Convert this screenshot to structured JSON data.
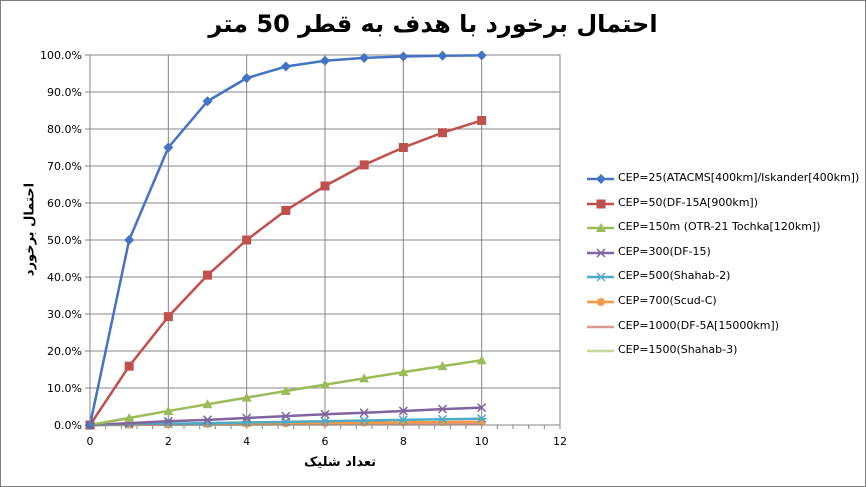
{
  "chart_data": {
    "type": "line",
    "title": "احتمال برخورد با هدف به قطر 50 متر",
    "xlabel": "تعداد شلیک",
    "ylabel": "احتمال برخورد",
    "xlim": [
      0,
      12
    ],
    "ylim": [
      0,
      1.0
    ],
    "x_ticks": [
      "0",
      "2",
      "4",
      "6",
      "8",
      "10",
      "12"
    ],
    "y_ticks": [
      "0.0%",
      "10.0%",
      "20.0%",
      "30.0%",
      "40.0%",
      "50.0%",
      "60.0%",
      "70.0%",
      "80.0%",
      "90.0%",
      "100.0%"
    ],
    "grid": true,
    "legend_position": "right",
    "x": [
      0,
      1,
      2,
      3,
      4,
      5,
      6,
      7,
      8,
      9,
      10
    ],
    "series": [
      {
        "name": "CEP=25(ATACMS[400km]/Iskander[400km])",
        "color": "#4472c4",
        "marker": "diamond",
        "values": [
          0,
          0.5,
          0.75,
          0.875,
          0.9375,
          0.9688,
          0.9844,
          0.9922,
          0.9961,
          0.998,
          0.999
        ]
      },
      {
        "name": "CEP=50(DF-15A[900km])",
        "color": "#c0504d",
        "marker": "square",
        "values": [
          0,
          0.159,
          0.293,
          0.405,
          0.5,
          0.58,
          0.646,
          0.703,
          0.75,
          0.79,
          0.823
        ]
      },
      {
        "name": "CEP=150m (OTR-21 Tochka[120km])",
        "color": "#9bbb59",
        "marker": "triangle",
        "values": [
          0,
          0.019,
          0.038,
          0.056,
          0.074,
          0.092,
          0.109,
          0.126,
          0.143,
          0.159,
          0.175
        ]
      },
      {
        "name": "CEP=300(DF-15)",
        "color": "#8064a2",
        "marker": "x",
        "values": [
          0,
          0.005,
          0.01,
          0.014,
          0.019,
          0.024,
          0.029,
          0.033,
          0.038,
          0.043,
          0.047
        ]
      },
      {
        "name": "CEP=500(Shahab-2)",
        "color": "#4bacc6",
        "marker": "star",
        "values": [
          0,
          0.0017,
          0.0035,
          0.0052,
          0.0069,
          0.0086,
          0.0103,
          0.012,
          0.0137,
          0.0154,
          0.017
        ]
      },
      {
        "name": "CEP=700(Scud-C)",
        "color": "#f79646",
        "marker": "circle",
        "values": [
          0,
          0.0009,
          0.0018,
          0.0027,
          0.0035,
          0.0044,
          0.0053,
          0.0062,
          0.007,
          0.0079,
          0.0088
        ]
      },
      {
        "name": "CEP=1000(DF-5A[15000km])",
        "color": "#d99694",
        "marker": "none",
        "values": [
          0,
          0.0004,
          0.0009,
          0.0013,
          0.0017,
          0.0022,
          0.0026,
          0.003,
          0.0035,
          0.0039,
          0.0043
        ]
      },
      {
        "name": "CEP=1500(Shahab-3)",
        "color": "#c3d69b",
        "marker": "none",
        "values": [
          0,
          0.0002,
          0.0004,
          0.0006,
          0.0008,
          0.001,
          0.0012,
          0.0013,
          0.0015,
          0.0017,
          0.0019
        ]
      }
    ]
  }
}
